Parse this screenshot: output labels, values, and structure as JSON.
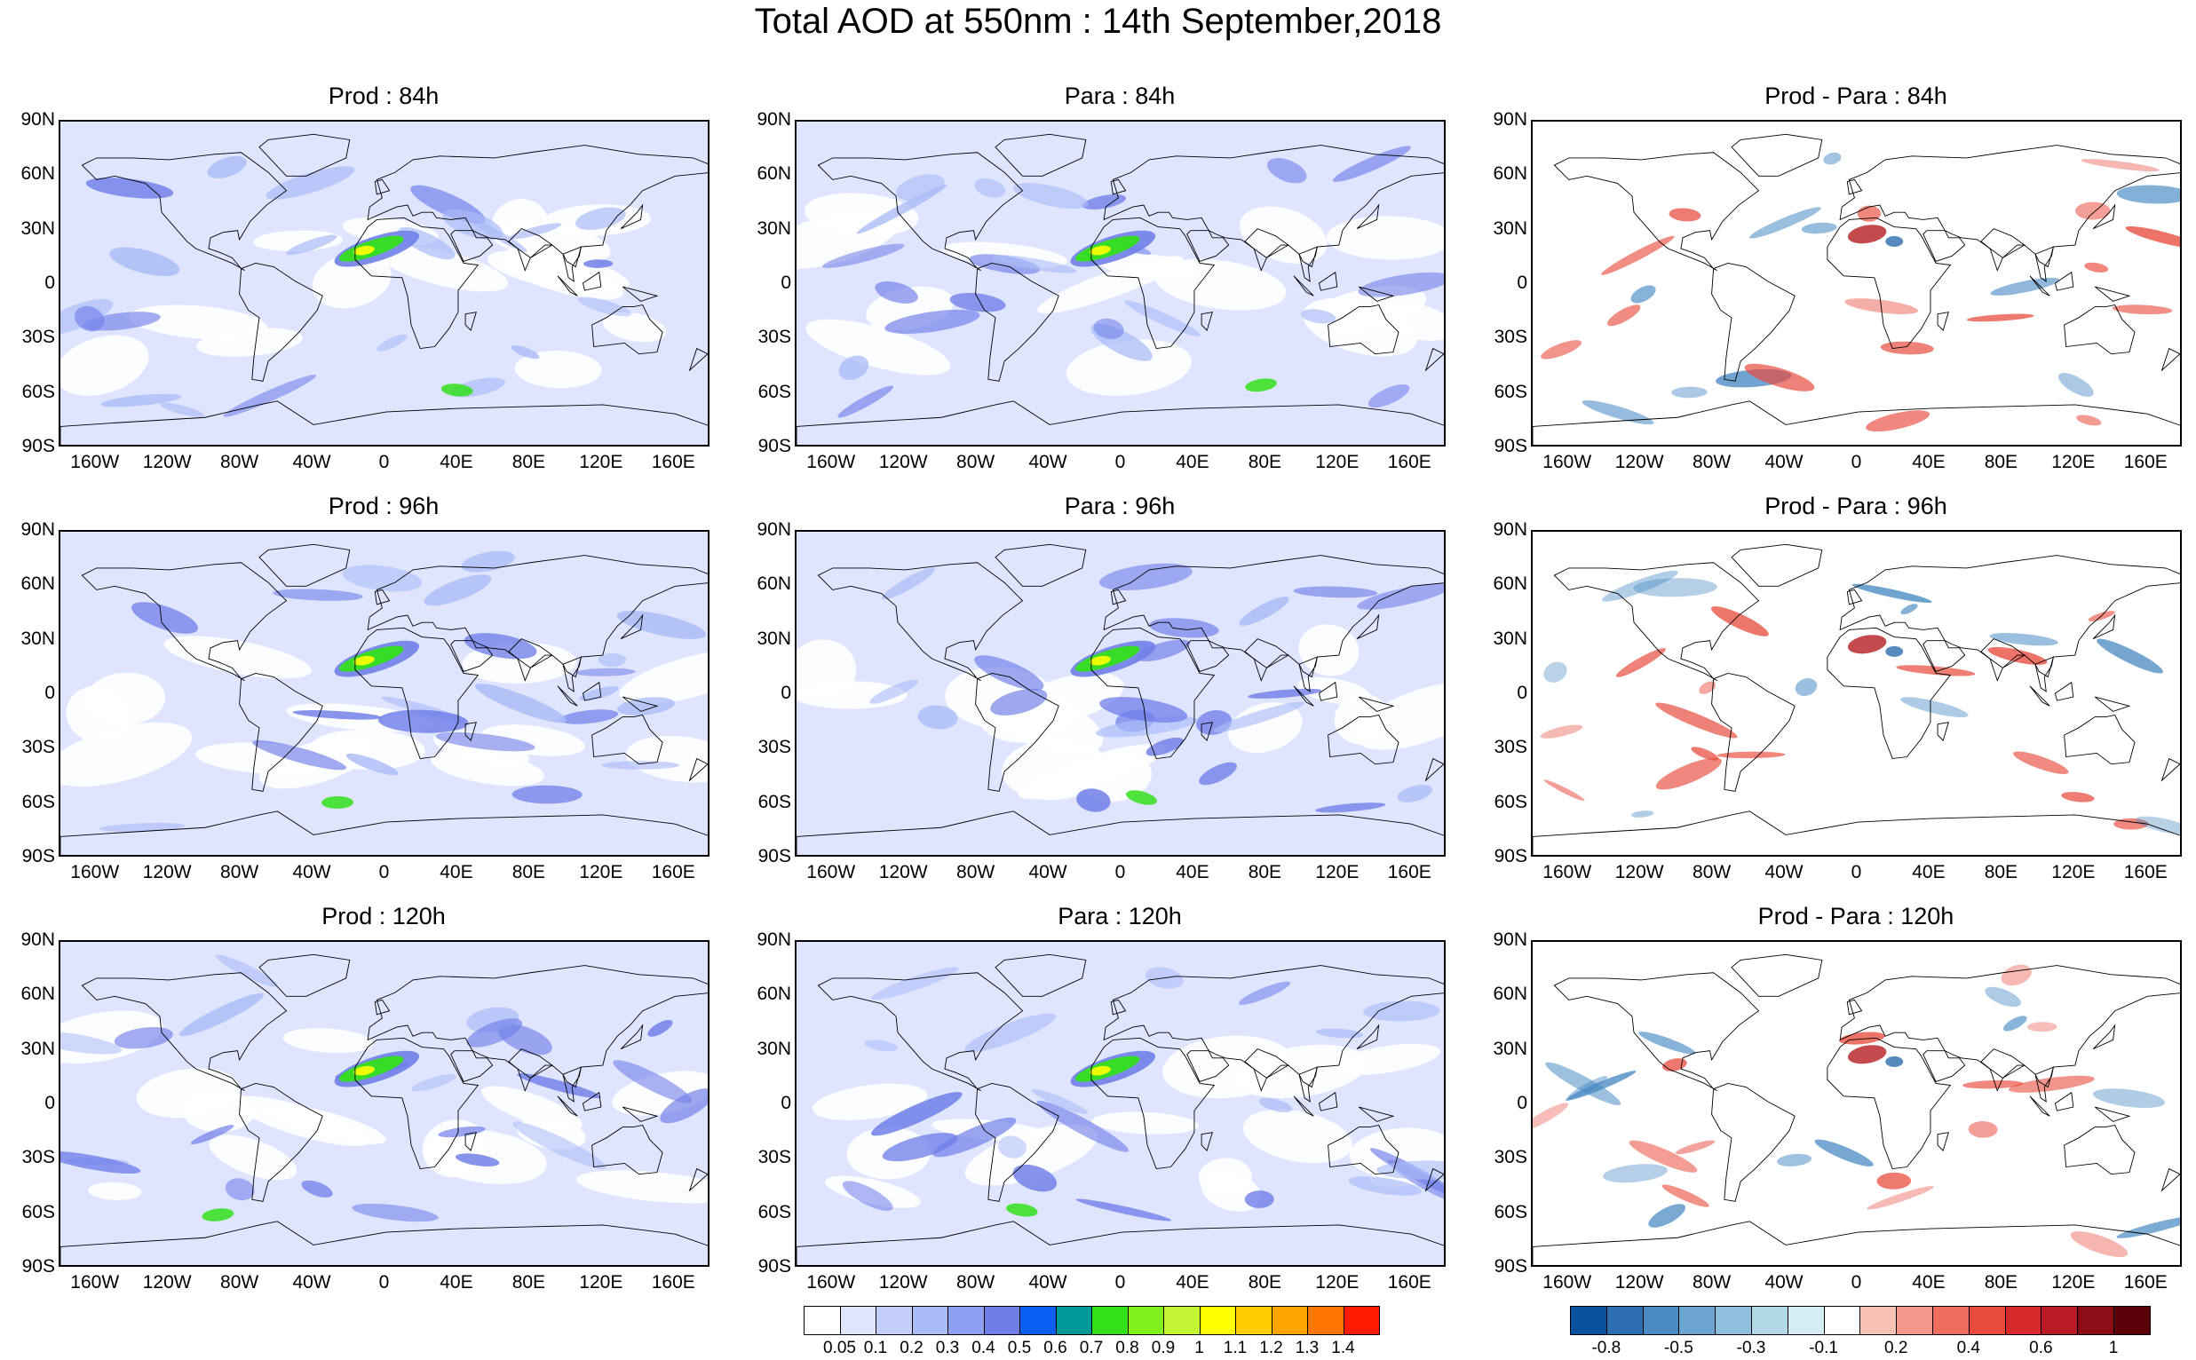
{
  "title": "Total AOD at 550nm : 14th September,2018",
  "panels": [
    {
      "title": "Prod : 84h",
      "kind": "aod",
      "seed": 11
    },
    {
      "title": "Para : 84h",
      "kind": "aod",
      "seed": 23
    },
    {
      "title": "Prod - Para : 84h",
      "kind": "diff",
      "seed": 37
    },
    {
      "title": "Prod : 96h",
      "kind": "aod",
      "seed": 41
    },
    {
      "title": "Para : 96h",
      "kind": "aod",
      "seed": 53
    },
    {
      "title": "Prod - Para : 96h",
      "kind": "diff",
      "seed": 67
    },
    {
      "title": "Prod : 120h",
      "kind": "aod",
      "seed": 71
    },
    {
      "title": "Para : 120h",
      "kind": "aod",
      "seed": 83
    },
    {
      "title": "Prod - Para : 120h",
      "kind": "diff",
      "seed": 97
    }
  ],
  "lat_labels": [
    "90N",
    "60N",
    "30N",
    "0",
    "30S",
    "60S",
    "90S"
  ],
  "lon_labels": [
    "160W",
    "120W",
    "80W",
    "40W",
    "0",
    "40E",
    "80E",
    "120E",
    "160E"
  ],
  "aod_legend": {
    "colors": [
      "#ffffff",
      "#dfe5ff",
      "#c4d0fb",
      "#aabcf7",
      "#8c9ff0",
      "#6f7ee8",
      "#0a5ef0",
      "#00999a",
      "#33e01a",
      "#7ff01a",
      "#c4f535",
      "#ffff00",
      "#ffcc00",
      "#ffa500",
      "#ff7700",
      "#ff1a00"
    ],
    "labels": [
      "0.05",
      "0.1",
      "0.2",
      "0.3",
      "0.4",
      "0.5",
      "0.6",
      "0.7",
      "0.8",
      "0.9",
      "1",
      "1.1",
      "1.2",
      "1.3",
      "1.4"
    ]
  },
  "diff_legend": {
    "colors": [
      "#08519c",
      "#2d6eb0",
      "#4a8bc4",
      "#6aa6d0",
      "#8dc0dc",
      "#b2d8e8",
      "#d4ecf4",
      "#ffffff",
      "#f8c3b5",
      "#f3988a",
      "#ee6e5e",
      "#e84a3c",
      "#d62a2a",
      "#b71d22",
      "#8b0c12",
      "#5a0008"
    ],
    "labels": [
      "-0.8",
      "-0.5",
      "-0.3",
      "-0.1",
      "0.2",
      "0.4",
      "0.6",
      "1"
    ]
  },
  "colors": {
    "aod_background": "#dfe5ff",
    "aod_medium": "#aabcf7",
    "aod_dark": "#6f7ee8",
    "dust_green": "#33e01a",
    "diff_red": "#e84a3c",
    "diff_blue": "#4a8bc4",
    "coastline": "#000000"
  }
}
